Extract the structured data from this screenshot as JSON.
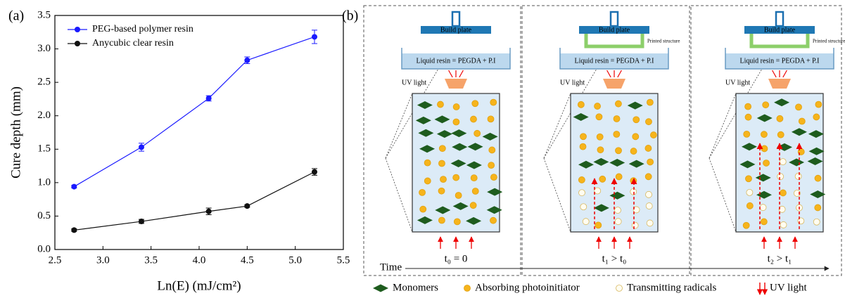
{
  "chart_data": {
    "type": "line",
    "panel_label": "(a)",
    "xlabel": "Ln(E) (mJ/cm²)",
    "ylabel": "Cure depth (mm)",
    "x": [
      2.7,
      3.4,
      4.1,
      4.5,
      5.2
    ],
    "series": [
      {
        "name": "PEG-based polymer resin",
        "color": "#1a1aff",
        "values": [
          0.94,
          1.53,
          2.26,
          2.83,
          3.18
        ],
        "errors": [
          0.02,
          0.06,
          0.04,
          0.05,
          0.1
        ]
      },
      {
        "name": "Anycubic clear resin",
        "color": "#111111",
        "values": [
          0.29,
          0.42,
          0.57,
          0.65,
          1.16
        ],
        "errors": [
          0.02,
          0.03,
          0.05,
          0.02,
          0.05
        ]
      }
    ],
    "xlim": [
      2.5,
      5.5
    ],
    "xticks": [
      2.5,
      {
        "value": 3,
        "label": "3.0"
      },
      3.5,
      {
        "value": 4,
        "label": "4.0"
      },
      4.5,
      {
        "value": 5,
        "label": "5.0"
      },
      5.5
    ],
    "ylim": [
      0,
      3.5
    ],
    "yticks": [
      {
        "value": 0,
        "label": "0.0"
      },
      0.5,
      {
        "value": 1,
        "label": "1.0"
      },
      1.5,
      {
        "value": 2,
        "label": "2.0"
      },
      2.5,
      {
        "value": 3,
        "label": "3.0"
      },
      3.5
    ],
    "legend": "upper left"
  },
  "diagram": {
    "panel_label": "(b)",
    "time_axis": "Time",
    "panels": [
      {
        "build_plate": "Build plate",
        "resin": "Liquid resin = PEGDA + P.I",
        "uv": "UV light",
        "time": "t₀ = 0"
      },
      {
        "build_plate": "Build plate",
        "printed": "Printed structure",
        "resin": "Liquid resin = PEGDA + P.I",
        "uv": "UV light",
        "time": "t₁ > t₀"
      },
      {
        "build_plate": "Build plate",
        "printed": "Printed structure",
        "resin": "Liquid resin = PEGDA + P.I",
        "uv": "UV light",
        "time": "t₂ > t₁"
      }
    ],
    "legend": [
      "Monomers",
      "Absorbing photoinitiator",
      "Transmitting radicals",
      "UV light"
    ]
  }
}
